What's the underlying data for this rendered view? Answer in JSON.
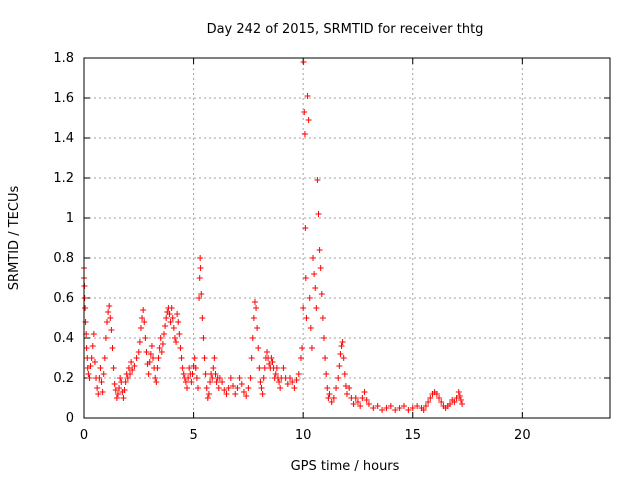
{
  "chart_data": {
    "type": "scatter",
    "title": "Day 242 of 2015, SRMTID for receiver thtg",
    "xlabel": "GPS time / hours",
    "ylabel": "SRMTID / TECUs",
    "xlim": [
      0,
      24
    ],
    "ylim": [
      0,
      1.8
    ],
    "xticks": [
      0,
      5,
      10,
      15,
      20
    ],
    "yticks": [
      0,
      0.2,
      0.4,
      0.6,
      0.8,
      1.0,
      1.2,
      1.4,
      1.6,
      1.8
    ],
    "xtick_labels": [
      "0",
      "5",
      "10",
      "15",
      "20"
    ],
    "ytick_labels": [
      "0",
      "0.2",
      "0.4",
      "0.6",
      "0.8",
      "1",
      "1.2",
      "1.4",
      "1.6",
      "1.8"
    ],
    "grid": true,
    "marker": "+",
    "color": "#ff0000",
    "series": [
      {
        "name": "SRMTID",
        "points": [
          [
            0.0,
            0.75
          ],
          [
            0.0,
            0.7
          ],
          [
            0.02,
            0.66
          ],
          [
            0.03,
            0.6
          ],
          [
            0.05,
            0.55
          ],
          [
            0.07,
            0.48
          ],
          [
            0.1,
            0.42
          ],
          [
            0.12,
            0.35
          ],
          [
            0.15,
            0.3
          ],
          [
            0.17,
            0.25
          ],
          [
            0.2,
            0.22
          ],
          [
            0.25,
            0.2
          ],
          [
            0.3,
            0.26
          ],
          [
            0.35,
            0.3
          ],
          [
            0.4,
            0.36
          ],
          [
            0.45,
            0.42
          ],
          [
            0.5,
            0.28
          ],
          [
            0.55,
            0.2
          ],
          [
            0.6,
            0.15
          ],
          [
            0.65,
            0.12
          ],
          [
            0.7,
            0.2
          ],
          [
            0.75,
            0.25
          ],
          [
            0.8,
            0.18
          ],
          [
            0.85,
            0.13
          ],
          [
            0.9,
            0.22
          ],
          [
            0.95,
            0.3
          ],
          [
            1.0,
            0.4
          ],
          [
            1.05,
            0.48
          ],
          [
            1.1,
            0.53
          ],
          [
            1.15,
            0.56
          ],
          [
            1.2,
            0.5
          ],
          [
            1.25,
            0.44
          ],
          [
            1.3,
            0.35
          ],
          [
            1.35,
            0.25
          ],
          [
            1.4,
            0.17
          ],
          [
            1.45,
            0.14
          ],
          [
            1.5,
            0.1
          ],
          [
            1.55,
            0.12
          ],
          [
            1.6,
            0.15
          ],
          [
            1.65,
            0.2
          ],
          [
            1.7,
            0.18
          ],
          [
            1.75,
            0.13
          ],
          [
            1.8,
            0.1
          ],
          [
            1.85,
            0.14
          ],
          [
            1.9,
            0.18
          ],
          [
            1.95,
            0.22
          ],
          [
            2.0,
            0.2
          ],
          [
            2.05,
            0.25
          ],
          [
            2.1,
            0.22
          ],
          [
            2.15,
            0.28
          ],
          [
            2.2,
            0.24
          ],
          [
            2.3,
            0.26
          ],
          [
            2.4,
            0.3
          ],
          [
            2.5,
            0.33
          ],
          [
            2.55,
            0.38
          ],
          [
            2.6,
            0.45
          ],
          [
            2.65,
            0.5
          ],
          [
            2.7,
            0.54
          ],
          [
            2.75,
            0.48
          ],
          [
            2.8,
            0.4
          ],
          [
            2.85,
            0.33
          ],
          [
            2.9,
            0.27
          ],
          [
            2.95,
            0.22
          ],
          [
            3.0,
            0.28
          ],
          [
            3.05,
            0.32
          ],
          [
            3.1,
            0.36
          ],
          [
            3.15,
            0.3
          ],
          [
            3.2,
            0.25
          ],
          [
            3.25,
            0.2
          ],
          [
            3.3,
            0.18
          ],
          [
            3.35,
            0.25
          ],
          [
            3.4,
            0.3
          ],
          [
            3.45,
            0.35
          ],
          [
            3.5,
            0.4
          ],
          [
            3.55,
            0.33
          ],
          [
            3.6,
            0.37
          ],
          [
            3.65,
            0.42
          ],
          [
            3.7,
            0.46
          ],
          [
            3.75,
            0.5
          ],
          [
            3.8,
            0.53
          ],
          [
            3.85,
            0.55
          ],
          [
            3.9,
            0.52
          ],
          [
            3.95,
            0.48
          ],
          [
            4.0,
            0.55
          ],
          [
            4.05,
            0.5
          ],
          [
            4.1,
            0.45
          ],
          [
            4.15,
            0.4
          ],
          [
            4.2,
            0.38
          ],
          [
            4.25,
            0.52
          ],
          [
            4.3,
            0.48
          ],
          [
            4.35,
            0.42
          ],
          [
            4.4,
            0.35
          ],
          [
            4.45,
            0.3
          ],
          [
            4.5,
            0.25
          ],
          [
            4.55,
            0.22
          ],
          [
            4.6,
            0.2
          ],
          [
            4.65,
            0.18
          ],
          [
            4.7,
            0.15
          ],
          [
            4.75,
            0.2
          ],
          [
            4.8,
            0.25
          ],
          [
            4.85,
            0.22
          ],
          [
            4.9,
            0.18
          ],
          [
            4.95,
            0.22
          ],
          [
            5.0,
            0.26
          ],
          [
            5.05,
            0.3
          ],
          [
            5.1,
            0.25
          ],
          [
            5.15,
            0.2
          ],
          [
            5.2,
            0.15
          ],
          [
            5.25,
            0.6
          ],
          [
            5.28,
            0.7
          ],
          [
            5.3,
            0.8
          ],
          [
            5.32,
            0.75
          ],
          [
            5.35,
            0.62
          ],
          [
            5.4,
            0.5
          ],
          [
            5.45,
            0.4
          ],
          [
            5.5,
            0.3
          ],
          [
            5.55,
            0.22
          ],
          [
            5.6,
            0.15
          ],
          [
            5.65,
            0.1
          ],
          [
            5.7,
            0.12
          ],
          [
            5.75,
            0.18
          ],
          [
            5.8,
            0.22
          ],
          [
            5.85,
            0.2
          ],
          [
            5.9,
            0.25
          ],
          [
            5.95,
            0.3
          ],
          [
            6.0,
            0.22
          ],
          [
            6.05,
            0.18
          ],
          [
            6.1,
            0.2
          ],
          [
            6.15,
            0.15
          ],
          [
            6.2,
            0.2
          ],
          [
            6.3,
            0.18
          ],
          [
            6.4,
            0.14
          ],
          [
            6.5,
            0.12
          ],
          [
            6.6,
            0.15
          ],
          [
            6.7,
            0.2
          ],
          [
            6.8,
            0.16
          ],
          [
            6.9,
            0.12
          ],
          [
            7.0,
            0.15
          ],
          [
            7.1,
            0.2
          ],
          [
            7.2,
            0.17
          ],
          [
            7.3,
            0.13
          ],
          [
            7.4,
            0.11
          ],
          [
            7.5,
            0.15
          ],
          [
            7.6,
            0.2
          ],
          [
            7.65,
            0.3
          ],
          [
            7.7,
            0.4
          ],
          [
            7.75,
            0.5
          ],
          [
            7.8,
            0.58
          ],
          [
            7.85,
            0.55
          ],
          [
            7.9,
            0.45
          ],
          [
            7.95,
            0.35
          ],
          [
            8.0,
            0.25
          ],
          [
            8.05,
            0.18
          ],
          [
            8.1,
            0.15
          ],
          [
            8.15,
            0.12
          ],
          [
            8.2,
            0.2
          ],
          [
            8.25,
            0.25
          ],
          [
            8.3,
            0.3
          ],
          [
            8.35,
            0.33
          ],
          [
            8.4,
            0.3
          ],
          [
            8.45,
            0.27
          ],
          [
            8.5,
            0.25
          ],
          [
            8.55,
            0.3
          ],
          [
            8.6,
            0.28
          ],
          [
            8.65,
            0.25
          ],
          [
            8.7,
            0.2
          ],
          [
            8.75,
            0.22
          ],
          [
            8.8,
            0.25
          ],
          [
            8.85,
            0.2
          ],
          [
            8.9,
            0.18
          ],
          [
            8.95,
            0.15
          ],
          [
            9.0,
            0.2
          ],
          [
            9.1,
            0.25
          ],
          [
            9.2,
            0.2
          ],
          [
            9.3,
            0.17
          ],
          [
            9.4,
            0.2
          ],
          [
            9.5,
            0.18
          ],
          [
            9.6,
            0.15
          ],
          [
            9.7,
            0.19
          ],
          [
            9.8,
            0.22
          ],
          [
            9.9,
            0.3
          ],
          [
            9.95,
            0.35
          ],
          [
            10.0,
            0.55
          ],
          [
            10.02,
            1.78
          ],
          [
            10.05,
            1.53
          ],
          [
            10.08,
            1.42
          ],
          [
            10.1,
            0.95
          ],
          [
            10.12,
            0.7
          ],
          [
            10.15,
            0.5
          ],
          [
            10.2,
            1.61
          ],
          [
            10.25,
            1.49
          ],
          [
            10.3,
            0.6
          ],
          [
            10.35,
            0.45
          ],
          [
            10.4,
            0.35
          ],
          [
            10.45,
            0.8
          ],
          [
            10.5,
            0.72
          ],
          [
            10.55,
            0.65
          ],
          [
            10.6,
            0.55
          ],
          [
            10.65,
            1.19
          ],
          [
            10.7,
            1.02
          ],
          [
            10.75,
            0.84
          ],
          [
            10.8,
            0.75
          ],
          [
            10.85,
            0.62
          ],
          [
            10.9,
            0.5
          ],
          [
            10.95,
            0.4
          ],
          [
            11.0,
            0.3
          ],
          [
            11.05,
            0.22
          ],
          [
            11.1,
            0.15
          ],
          [
            11.15,
            0.1
          ],
          [
            11.2,
            0.12
          ],
          [
            11.3,
            0.08
          ],
          [
            11.4,
            0.1
          ],
          [
            11.5,
            0.15
          ],
          [
            11.6,
            0.2
          ],
          [
            11.65,
            0.26
          ],
          [
            11.7,
            0.32
          ],
          [
            11.75,
            0.36
          ],
          [
            11.8,
            0.38
          ],
          [
            11.85,
            0.3
          ],
          [
            11.9,
            0.22
          ],
          [
            11.95,
            0.16
          ],
          [
            12.0,
            0.12
          ],
          [
            12.1,
            0.15
          ],
          [
            12.2,
            0.1
          ],
          [
            12.3,
            0.07
          ],
          [
            12.4,
            0.1
          ],
          [
            12.5,
            0.08
          ],
          [
            12.6,
            0.06
          ],
          [
            12.7,
            0.1
          ],
          [
            12.8,
            0.13
          ],
          [
            12.9,
            0.09
          ],
          [
            13.0,
            0.07
          ],
          [
            13.2,
            0.05
          ],
          [
            13.4,
            0.06
          ],
          [
            13.6,
            0.04
          ],
          [
            13.8,
            0.05
          ],
          [
            14.0,
            0.06
          ],
          [
            14.2,
            0.04
          ],
          [
            14.4,
            0.05
          ],
          [
            14.6,
            0.06
          ],
          [
            14.8,
            0.04
          ],
          [
            15.0,
            0.05
          ],
          [
            15.2,
            0.06
          ],
          [
            15.4,
            0.05
          ],
          [
            15.5,
            0.04
          ],
          [
            15.6,
            0.06
          ],
          [
            15.7,
            0.08
          ],
          [
            15.8,
            0.1
          ],
          [
            15.9,
            0.12
          ],
          [
            16.0,
            0.13
          ],
          [
            16.1,
            0.12
          ],
          [
            16.2,
            0.1
          ],
          [
            16.3,
            0.08
          ],
          [
            16.4,
            0.06
          ],
          [
            16.5,
            0.05
          ],
          [
            16.6,
            0.06
          ],
          [
            16.7,
            0.07
          ],
          [
            16.8,
            0.09
          ],
          [
            16.9,
            0.08
          ],
          [
            17.0,
            0.1
          ],
          [
            17.1,
            0.13
          ],
          [
            17.15,
            0.11
          ],
          [
            17.2,
            0.09
          ],
          [
            17.25,
            0.07
          ]
        ]
      }
    ]
  }
}
